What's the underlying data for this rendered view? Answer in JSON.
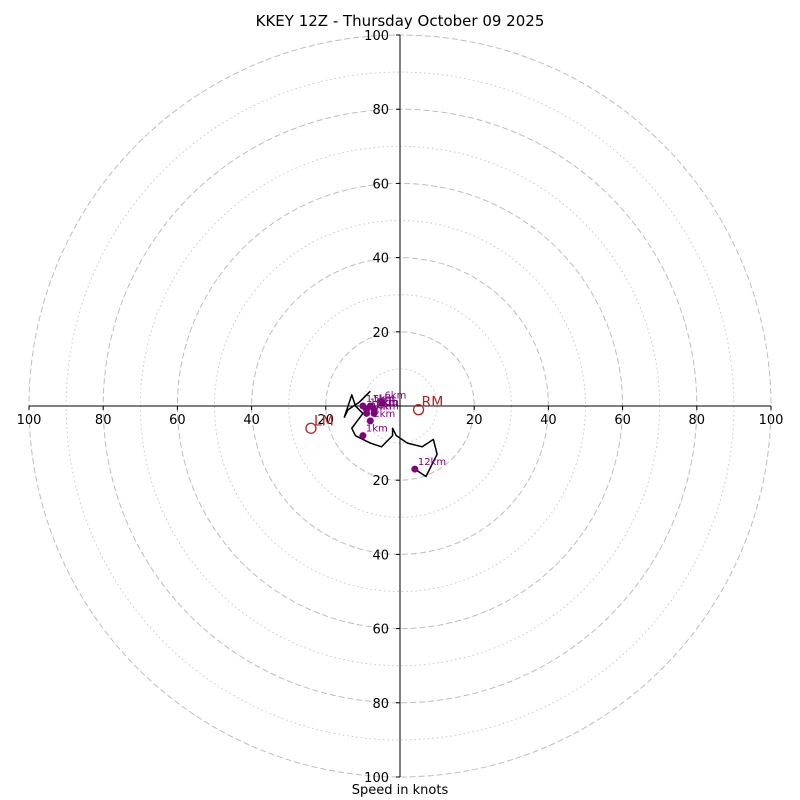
{
  "chart_data": {
    "type": "hodograph",
    "title": "KKEY 12Z - Thursday October 09 2025",
    "xlabel": "Speed in knots",
    "ring_max": 100,
    "major_rings": [
      20,
      40,
      60,
      80,
      100
    ],
    "minor_rings": [
      10,
      30,
      50,
      70,
      90
    ],
    "tick_values": [
      20,
      40,
      60,
      80,
      100
    ],
    "hodograph_trace": {
      "color": "#000000",
      "points": [
        [
          -8,
          4
        ],
        [
          -11,
          1
        ],
        [
          -14,
          -1
        ],
        [
          -15,
          -3
        ],
        [
          -13,
          3
        ],
        [
          -12,
          0
        ],
        [
          -10,
          -2
        ],
        [
          -13,
          -6
        ],
        [
          -12,
          -8
        ],
        [
          -8,
          -10
        ],
        [
          -5,
          -11
        ],
        [
          -3,
          -9
        ],
        [
          -2,
          -8
        ],
        [
          -2,
          -6
        ],
        [
          -1,
          -8
        ],
        [
          2,
          -10
        ],
        [
          6,
          -11
        ],
        [
          9,
          -9
        ],
        [
          10,
          -13
        ],
        [
          7,
          -19
        ],
        [
          4,
          -17
        ]
      ]
    },
    "height_markers": {
      "color": "#800080",
      "points": [
        {
          "label": "1km",
          "u": -10,
          "v": -8
        },
        {
          "label": "2km",
          "u": -8,
          "v": -4
        },
        {
          "label": "3km",
          "u": -9,
          "v": -2
        },
        {
          "label": "4km",
          "u": -7,
          "v": -2
        },
        {
          "label": "5km",
          "u": -8,
          "v": 0
        },
        {
          "label": "6km",
          "u": -5,
          "v": 1
        },
        {
          "label": "9km",
          "u": -7,
          "v": -1
        },
        {
          "label": "10km",
          "u": -9,
          "v": -1
        },
        {
          "label": "11km",
          "u": -10,
          "v": 0
        },
        {
          "label": "12km",
          "u": 4,
          "v": -17
        }
      ]
    },
    "storm_motion": {
      "color": "#b22222",
      "points": [
        {
          "label": "RM",
          "u": 5,
          "v": -1
        },
        {
          "label": "LM",
          "u": -24,
          "v": -6
        }
      ]
    }
  }
}
